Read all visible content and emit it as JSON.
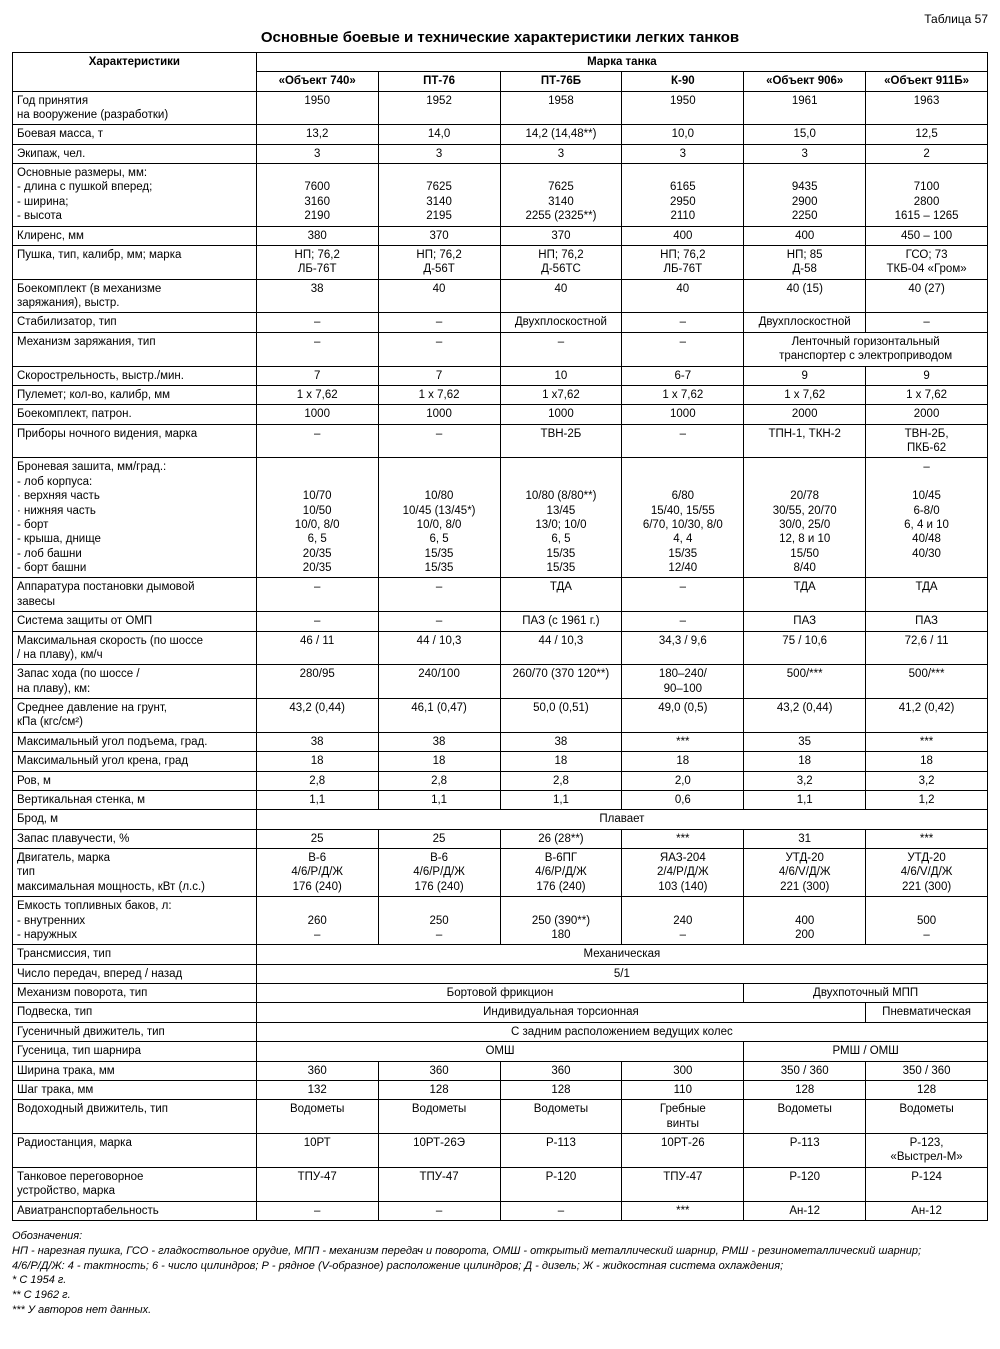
{
  "tableNumber": "Таблица 57",
  "title": "Основные боевые и технические характеристики легких танков",
  "header1": "Характеристики",
  "header2": "Марка танка",
  "tanks": [
    "«Объект 740»",
    "ПТ-76",
    "ПТ-76Б",
    "К-90",
    "«Объект 906»",
    "«Объект 911Б»"
  ],
  "rows": [
    {
      "label": "Год принятия\nна вооружение (разработки)",
      "cells": [
        "1950",
        "1952",
        "1958",
        "1950",
        "1961",
        "1963"
      ]
    },
    {
      "label": "Боевая масса, т",
      "cells": [
        "13,2",
        "14,0",
        "14,2 (14,48**)",
        "10,0",
        "15,0",
        "12,5"
      ]
    },
    {
      "label": "Экипаж, чел.",
      "cells": [
        "3",
        "3",
        "3",
        "3",
        "3",
        "2"
      ]
    },
    {
      "label": "Основные размеры, мм:\n - длина с пушкой вперед;\n - ширина;\n - высота",
      "cells": [
        "\n7600\n3160\n2190",
        "\n7625\n3140\n2195",
        "\n7625\n3140\n2255 (2325**)",
        "\n6165\n2950\n2110",
        "\n9435\n2900\n2250",
        "\n7100\n2800\n1615 – 1265"
      ]
    },
    {
      "label": "Клиренс, мм",
      "cells": [
        "380",
        "370",
        "370",
        "400",
        "400",
        "450 – 100"
      ]
    },
    {
      "label": "Пушка, тип, калибр, мм; марка",
      "cells": [
        "НП; 76,2\nЛБ-76Т",
        "НП; 76,2\nД-56Т",
        "НП; 76,2\nД-56ТС",
        "НП; 76,2\nЛБ-76Т",
        "НП; 85\nД-58",
        "ГСО; 73\nТКБ-04 «Гром»"
      ]
    },
    {
      "label": "Боекомплект (в механизме\nзаряжания), выстр.",
      "cells": [
        "38",
        "40",
        "40",
        "40",
        "40 (15)",
        "40 (27)"
      ]
    },
    {
      "label": "Стабилизатор, тип",
      "cells": [
        "–",
        "–",
        "Двухплоскостной",
        "–",
        "Двухплоскостной",
        "–"
      ]
    },
    {
      "label": "Механизм заряжания, тип",
      "merge": {
        "cells": [
          "–",
          "–",
          "–",
          "–"
        ],
        "spanText": "Ленточный горизонтальный\nтранспортер с электроприводом",
        "spanCols": 2
      }
    },
    {
      "label": "Скорострельность, выстр./мин.",
      "cells": [
        "7",
        "7",
        "10",
        "6-7",
        "9",
        "9"
      ]
    },
    {
      "label": "Пулемет; кол-во, калибр, мм",
      "cells": [
        "1 х 7,62",
        "1 х 7,62",
        "1 x7,62",
        "1 х 7,62",
        "1 х 7,62",
        "1 х 7,62"
      ]
    },
    {
      "label": "Боекомплект, патрон.",
      "cells": [
        "1000",
        "1000",
        "1000",
        "1000",
        "2000",
        "2000"
      ]
    },
    {
      "label": "Приборы ночного видения, марка",
      "cells": [
        "–",
        "–",
        "ТВН-2Б",
        "–",
        "ТПН-1, ТКН-2",
        "ТВН-2Б,\nПКБ-62"
      ]
    },
    {
      "label": "Броневая зашита, мм/град.:\n - лоб корпуса:\n  · верхняя часть\n  · нижняя часть\n - борт\n - крыша, днище\n - лоб башни\n - борт башни",
      "cells": [
        "\n\n10/70\n10/50\n10/0, 8/0\n6, 5\n20/35\n20/35",
        "\n\n10/80\n10/45 (13/45*)\n10/0, 8/0\n6, 5\n15/35\n15/35",
        "\n\n10/80 (8/80**)\n13/45\n13/0; 10/0\n6, 5\n15/35\n15/35",
        "\n\n6/80\n15/40, 15/55\n6/70, 10/30, 8/0\n4, 4\n15/35\n12/40",
        "\n\n20/78\n30/55, 20/70\n30/0, 25/0\n12, 8 и 10\n15/50\n8/40",
        "–\n\n10/45\n6-8/0\n6, 4 и 10\n40/48\n40/30"
      ]
    },
    {
      "label": "Аппаратура постановки дымовой\nзавесы",
      "cells": [
        "–",
        "–",
        "ТДА",
        "–",
        "ТДА",
        "ТДА"
      ]
    },
    {
      "label": "Система защиты от ОМП",
      "cells": [
        "–",
        "–",
        "ПАЗ (с 1961 г.)",
        "–",
        "ПАЗ",
        "ПАЗ"
      ]
    },
    {
      "label": "Максимальная скорость (по шоссе\n/ на плаву), км/ч",
      "cells": [
        "46 / 11",
        "44 / 10,3",
        "44 / 10,3",
        "34,3 / 9,6",
        "75 / 10,6",
        "72,6 / 11"
      ]
    },
    {
      "label": "Запас хода (по шоссе /\nна плаву), км:",
      "cells": [
        "280/95",
        "240/100",
        "260/70 (370 120**)",
        "180–240/\n90–100",
        "500/***",
        "500/***"
      ]
    },
    {
      "label": "Среднее давление на грунт,\nкПа (кгс/см²)",
      "cells": [
        "43,2 (0,44)",
        "46,1 (0,47)",
        "50,0 (0,51)",
        "49,0 (0,5)",
        "43,2 (0,44)",
        "41,2 (0,42)"
      ]
    },
    {
      "label": "Максимальный угол подъема, град.",
      "cells": [
        "38",
        "38",
        "38",
        "***",
        "35",
        "***"
      ]
    },
    {
      "label": "Максимальный угол крена, град",
      "cells": [
        "18",
        "18",
        "18",
        "18",
        "18",
        "18"
      ]
    },
    {
      "label": "Ров, м",
      "cells": [
        "2,8",
        "2,8",
        "2,8",
        "2,0",
        "3,2",
        "3,2"
      ]
    },
    {
      "label": "Вертикальная стенка, м",
      "cells": [
        "1,1",
        "1,1",
        "1,1",
        "0,6",
        "1,1",
        "1,2"
      ]
    },
    {
      "label": "Брод, м",
      "fullSpan": "Плавает"
    },
    {
      "label": "Запас плавучести, %",
      "cells": [
        "25",
        "25",
        "26 (28**)",
        "***",
        "31",
        "***"
      ]
    },
    {
      "label": "Двигатель, марка\nтип\nмаксимальная мощность, кВт (л.с.)",
      "cells": [
        "В-6\n4/6/Р/Д/Ж\n176 (240)",
        "В-6\n4/6/Р/Д/Ж\n176 (240)",
        "В-6ПГ\n4/6/Р/Д/Ж\n176 (240)",
        "ЯАЗ-204\n2/4/Р/Д/Ж\n103 (140)",
        "УТД-20\n4/6/V/Д/Ж\n221 (300)",
        "УТД-20\n4/6/V/Д/Ж\n221 (300)"
      ]
    },
    {
      "label": "Емкость топливных баков, л:\n - внутренних\n - наружных",
      "cells": [
        "\n260\n–",
        "\n250\n–",
        "\n250 (390**)\n180",
        "\n240\n–",
        "\n400\n200",
        "\n500\n–"
      ]
    },
    {
      "label": "Трансмиссия, тип",
      "fullSpan": "Механическая"
    },
    {
      "label": "Число передач, вперед / назад",
      "fullSpan": "5/1"
    },
    {
      "label": "Механизм поворота, тип",
      "merge": {
        "spanTextA": "Бортовой фрикцион",
        "spanA": 4,
        "spanTextB": "Двухпоточный МПП",
        "spanB": 2
      }
    },
    {
      "label": "Подвеска, тип",
      "merge": {
        "spanTextA": "Индивидуальная торсионная",
        "spanA": 5,
        "spanTextB": "Пневматическая",
        "spanB": 1
      }
    },
    {
      "label": "Гусеничный движитель, тип",
      "fullSpan": "С задним расположением ведущих колес"
    },
    {
      "label": "Гусеница, тип шарнира",
      "merge": {
        "spanTextA": "ОМШ",
        "spanA": 4,
        "spanTextB": "РМШ / ОМШ",
        "spanB": 2
      }
    },
    {
      "label": "Ширина трака, мм",
      "cells": [
        "360",
        "360",
        "360",
        "300",
        "350 / 360",
        "350 / 360"
      ]
    },
    {
      "label": "Шаг трака, мм",
      "cells": [
        "132",
        "128",
        "128",
        "110",
        "128",
        "128"
      ]
    },
    {
      "label": "Водоходный движитель, тип",
      "cells": [
        "Водометы",
        "Водометы",
        "Водометы",
        "Гребные\nвинты",
        "Водометы",
        "Водометы"
      ]
    },
    {
      "label": "Радиостанция, марка",
      "cells": [
        "10РТ",
        "10РТ-26Э",
        "Р-113",
        "10РТ-26",
        "Р-113",
        "Р-123,\n«Выстрел-М»"
      ]
    },
    {
      "label": "Танковое переговорное\nустройство, марка",
      "cells": [
        "ТПУ-47",
        "ТПУ-47",
        "Р-120",
        "ТПУ-47",
        "Р-120",
        "Р-124"
      ]
    },
    {
      "label": "Авиатранспортабельность",
      "cells": [
        "–",
        "–",
        "–",
        "***",
        "Ан-12",
        "Ан-12"
      ]
    }
  ],
  "footnotes": {
    "head": "Обозначения:",
    "lines": [
      "НП - нарезная пушка, ГСО - гладкоствольное орудие, МПП - механизм передач и поворота, ОМШ - открытый металлический шарнир, РМШ - резинометаллический шарнир;",
      "4/6/Р/Д/Ж: 4 - тактность; 6 - число цилиндров; Р - рядное (V-образное) расположение цилиндров; Д - дизель; Ж - жидкостная система охлаждения;",
      "* С 1954 г.",
      "** С 1962 г.",
      "*** У авторов нет данных."
    ]
  }
}
